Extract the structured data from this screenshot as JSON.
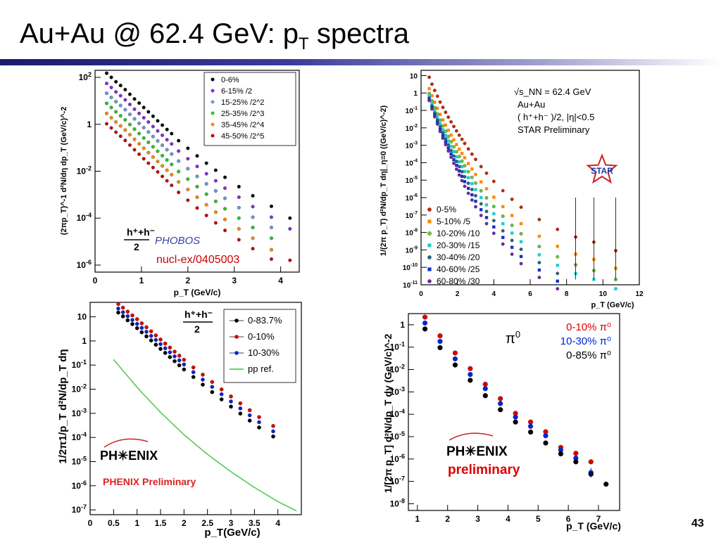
{
  "slide": {
    "title_main": "Au+Au @ 62.4 GeV: p",
    "title_sub": "T",
    "title_tail": " spectra",
    "page_number": "43"
  },
  "chart_data": [
    {
      "id": "phobos",
      "type": "scatter",
      "xlabel": "p_T (GeV/c)",
      "ylabel": "(2πp_T)^-1 d²N/dη dp_T (GeV/c)^-2",
      "xlim": [
        0,
        4.4
      ],
      "ylim_log10": [
        -6.3,
        2.3
      ],
      "log_y": true,
      "x_ticks": [
        "0",
        "1",
        "2",
        "3",
        "4"
      ],
      "y_ticks": [
        "10^2",
        "1",
        "10^-2",
        "10^-4",
        "10^-6"
      ],
      "legend_position": "top-right",
      "series": [
        {
          "name": "0-6%",
          "color": "#000000",
          "x": [
            0.25,
            0.35,
            0.45,
            0.55,
            0.65,
            0.75,
            0.85,
            0.95,
            1.05,
            1.15,
            1.25,
            1.35,
            1.45,
            1.55,
            1.65,
            1.8,
            2.0,
            2.2,
            2.4,
            2.6,
            2.8,
            3.1,
            3.4,
            3.8,
            4.2
          ],
          "y": [
            150,
            100,
            65,
            45,
            30,
            19,
            12,
            8,
            5.2,
            3.4,
            2.2,
            1.4,
            0.92,
            0.6,
            0.4,
            0.2,
            0.095,
            0.045,
            0.022,
            0.011,
            0.0055,
            0.0022,
            0.0009,
            0.00032,
            0.0001
          ]
        },
        {
          "name": "6-15%  /2",
          "color": "#8a2be2",
          "x": [
            0.25,
            0.35,
            0.45,
            0.55,
            0.65,
            0.75,
            0.85,
            0.95,
            1.05,
            1.15,
            1.25,
            1.35,
            1.45,
            1.55,
            1.65,
            1.8,
            2.0,
            2.2,
            2.4,
            2.6,
            2.8,
            3.1,
            3.4,
            3.8,
            4.2
          ],
          "y": [
            55,
            37,
            24,
            16.5,
            11,
            7,
            4.4,
            2.9,
            1.9,
            1.25,
            0.8,
            0.52,
            0.34,
            0.22,
            0.145,
            0.072,
            0.034,
            0.016,
            0.0078,
            0.0039,
            0.0019,
            0.00078,
            0.00031,
            0.00011,
            3.5e-05
          ]
        },
        {
          "name": "15-25% /2^2",
          "color": "#6a9bd8",
          "x": [
            0.25,
            0.35,
            0.45,
            0.55,
            0.65,
            0.75,
            0.85,
            0.95,
            1.05,
            1.15,
            1.25,
            1.35,
            1.45,
            1.55,
            1.65,
            1.8,
            2.0,
            2.2,
            2.4,
            2.6,
            2.8,
            3.1,
            3.4,
            3.8
          ],
          "y": [
            21,
            14,
            9.2,
            6.3,
            4.2,
            2.65,
            1.7,
            1.1,
            0.72,
            0.47,
            0.3,
            0.195,
            0.127,
            0.083,
            0.054,
            0.027,
            0.0128,
            0.006,
            0.0029,
            0.00145,
            0.0007,
            0.00028,
            0.00011,
            4e-05
          ]
        },
        {
          "name": "25-35% /2^3",
          "color": "#22cc22",
          "x": [
            0.25,
            0.35,
            0.45,
            0.55,
            0.65,
            0.75,
            0.85,
            0.95,
            1.05,
            1.15,
            1.25,
            1.35,
            1.45,
            1.55,
            1.65,
            1.8,
            2.0,
            2.2,
            2.4,
            2.6,
            2.8,
            3.1,
            3.4,
            3.8
          ],
          "y": [
            7.8,
            5.2,
            3.4,
            2.3,
            1.55,
            0.98,
            0.62,
            0.4,
            0.26,
            0.17,
            0.11,
            0.071,
            0.046,
            0.03,
            0.0195,
            0.0097,
            0.0046,
            0.0022,
            0.00105,
            0.00052,
            0.00025,
            0.0001,
            4e-05,
            1.4e-05
          ]
        },
        {
          "name": "35-45% /2^4",
          "color": "#ff8c00",
          "x": [
            0.25,
            0.35,
            0.45,
            0.55,
            0.65,
            0.75,
            0.85,
            0.95,
            1.05,
            1.15,
            1.25,
            1.35,
            1.45,
            1.55,
            1.65,
            1.8,
            2.0,
            2.2,
            2.4,
            2.6,
            2.8,
            3.1,
            3.4,
            3.8
          ],
          "y": [
            2.9,
            1.9,
            1.25,
            0.85,
            0.57,
            0.36,
            0.228,
            0.147,
            0.095,
            0.062,
            0.04,
            0.026,
            0.0168,
            0.011,
            0.0071,
            0.0035,
            0.00166,
            0.00078,
            0.00037,
            0.00018,
            8.8e-05,
            3.5e-05,
            1.4e-05,
            4.5e-06
          ]
        },
        {
          "name": "45-50% /2^5",
          "color": "#cc0000",
          "x": [
            0.25,
            0.35,
            0.45,
            0.55,
            0.65,
            0.75,
            0.85,
            0.95,
            1.05,
            1.15,
            1.25,
            1.35,
            1.45,
            1.55,
            1.65,
            1.8,
            2.0,
            2.2,
            2.4,
            2.6,
            2.8,
            3.1,
            3.4,
            3.8,
            4.2
          ],
          "y": [
            1.05,
            0.7,
            0.46,
            0.31,
            0.205,
            0.13,
            0.082,
            0.053,
            0.034,
            0.022,
            0.0143,
            0.0093,
            0.006,
            0.0039,
            0.0025,
            0.00125,
            0.00058,
            0.00027,
            0.00013,
            6.3e-05,
            3e-05,
            1.2e-05,
            5e-06,
            1.8e-06,
            1.6e-06
          ]
        }
      ],
      "annotations": {
        "charge_label": "h⁺+h⁻",
        "charge_den": "2",
        "experiment": "PHOBOS",
        "reference": "nucl-ex/0405003"
      }
    },
    {
      "id": "star",
      "type": "scatter",
      "xlabel": "p_T (GeV/c)",
      "ylabel": "1/(2π p_T)  d²N/dp_T dη|_η=0 ((GeV/c)^-2)",
      "xlim": [
        0,
        12
      ],
      "ylim_log10": [
        -11,
        1.3
      ],
      "log_y": true,
      "x_ticks": [
        "0",
        "2",
        "4",
        "6",
        "8",
        "10",
        "12"
      ],
      "y_ticks": [
        "10",
        "1",
        "10^-1",
        "10^-2",
        "10^-3",
        "10^-4",
        "10^-5",
        "10^-6",
        "10^-7",
        "10^-8",
        "10^-9",
        "10^-10",
        "10^-11"
      ],
      "legend_position": "bottom-left",
      "series": [
        {
          "name": "0-5%",
          "color": "#cc2200"
        },
        {
          "name": "5-10% /5",
          "color": "#ff8800"
        },
        {
          "name": "10-20% /10",
          "color": "#66cc33"
        },
        {
          "name": "20-30% /15",
          "color": "#22cccc"
        },
        {
          "name": "30-40% /20",
          "color": "#226688"
        },
        {
          "name": "40-60% /25",
          "color": "#1133cc"
        },
        {
          "name": "60-80% /30",
          "color": "#7722aa"
        }
      ],
      "x": [
        0.45,
        0.6,
        0.75,
        0.9,
        1.05,
        1.2,
        1.35,
        1.5,
        1.65,
        1.8,
        1.95,
        2.1,
        2.25,
        2.4,
        2.6,
        2.8,
        3.0,
        3.3,
        3.6,
        4.0,
        4.5,
        5.0,
        5.5,
        6.5,
        7.5,
        8.5,
        9.5,
        10.7
      ],
      "y_central": [
        8,
        3.2,
        1.4,
        0.65,
        0.3,
        0.15,
        0.078,
        0.041,
        0.022,
        0.012,
        0.0067,
        0.0038,
        0.0022,
        0.00128,
        0.00062,
        0.00031,
        0.000155,
        6e-05,
        2.5e-05,
        8.5e-06,
        2.5e-06,
        8e-07,
        2.8e-07,
        5.5e-08,
        1.5e-08,
        5.5e-09,
        2.8e-09,
        9e-10
      ],
      "annotations": {
        "energy": "√s_NN = 62.4 GeV",
        "system": "Au+Au",
        "charge": "( h⁺+h⁻ )/2, |η|<0.5",
        "experiment": "STAR Preliminary",
        "logo": "STAR"
      }
    },
    {
      "id": "phenix-charged",
      "type": "scatter",
      "xlabel": "p_T(GeV/c)",
      "ylabel": "1/2π1/p_T d²N/dp_T dη",
      "xlim": [
        0,
        4.5
      ],
      "ylim_log10": [
        -7.2,
        1.6
      ],
      "log_y": true,
      "x_ticks": [
        "0",
        "0.5",
        "1",
        "1.5",
        "2",
        "2.5",
        "3",
        "3.5",
        "4"
      ],
      "y_ticks": [
        "10",
        "1",
        "10^-1",
        "10^-2",
        "10^-3",
        "10^-4",
        "10^-5",
        "10^-6",
        "10^-7"
      ],
      "legend_position": "top-right",
      "series": [
        {
          "name": "0-83.7%",
          "color": "#000000",
          "x": [
            0.6,
            0.7,
            0.8,
            0.9,
            1.0,
            1.1,
            1.2,
            1.3,
            1.4,
            1.5,
            1.6,
            1.7,
            1.8,
            1.9,
            2.0,
            2.2,
            2.4,
            2.6,
            2.8,
            3.0,
            3.2,
            3.4,
            3.6,
            3.9
          ],
          "y": [
            15,
            10.5,
            7.2,
            5,
            3.4,
            2.3,
            1.55,
            1.05,
            0.7,
            0.47,
            0.32,
            0.215,
            0.145,
            0.098,
            0.066,
            0.032,
            0.0155,
            0.0076,
            0.0038,
            0.0019,
            0.00098,
            0.0005,
            0.00026,
            0.00011
          ]
        },
        {
          "name": "0-10%",
          "color": "#dd0000",
          "x": [
            0.6,
            0.7,
            0.8,
            0.9,
            1.0,
            1.1,
            1.2,
            1.3,
            1.4,
            1.5,
            1.6,
            1.7,
            1.8,
            1.9,
            2.0,
            2.2,
            2.4,
            2.6,
            2.8,
            3.0,
            3.2,
            3.4,
            3.6,
            3.9
          ],
          "y": [
            34,
            24,
            16.5,
            11.5,
            8,
            5.4,
            3.7,
            2.5,
            1.7,
            1.15,
            0.78,
            0.53,
            0.36,
            0.245,
            0.166,
            0.08,
            0.04,
            0.02,
            0.0098,
            0.005,
            0.0026,
            0.00135,
            0.0007,
            0.0003
          ]
        },
        {
          "name": "10-30%",
          "color": "#0022dd",
          "x": [
            0.6,
            0.7,
            0.8,
            0.9,
            1.0,
            1.1,
            1.2,
            1.3,
            1.4,
            1.5,
            1.6,
            1.7,
            1.8,
            1.9,
            2.0,
            2.2,
            2.4,
            2.6,
            2.8,
            3.0,
            3.2,
            3.4,
            3.6,
            3.9
          ],
          "y": [
            22,
            15.5,
            10.7,
            7.4,
            5.1,
            3.5,
            2.4,
            1.62,
            1.1,
            0.74,
            0.5,
            0.34,
            0.23,
            0.157,
            0.106,
            0.051,
            0.025,
            0.0125,
            0.0062,
            0.0031,
            0.0016,
            0.00083,
            0.00043,
            0.00018
          ]
        },
        {
          "name": "pp ref.",
          "color": "#55cc55",
          "line": true,
          "x": [
            0.5,
            1.0,
            1.5,
            2.0,
            2.5,
            3.0,
            3.5,
            4.0,
            4.4
          ],
          "y": [
            0.17,
            0.012,
            0.0011,
            0.00013,
            2e-05,
            3.8e-06,
            8.5e-07,
            2.2e-07,
            9e-08
          ]
        }
      ],
      "annotations": {
        "charge_label": "h⁺+h⁻",
        "charge_den": "2",
        "experiment": "PH✳ENIX",
        "experiment_sub": "PHENIX Preliminary"
      }
    },
    {
      "id": "phenix-pi0",
      "type": "scatter",
      "xlabel": "p_T (GeV/c)",
      "ylabel": "1/[2π p_T] d²N/dp_T dy (GeV/c)^-2",
      "xlim": [
        0.7,
        7.7
      ],
      "ylim_log10": [
        -8.3,
        0.5
      ],
      "log_y": true,
      "x_ticks": [
        "1",
        "2",
        "3",
        "4",
        "5",
        "6",
        "7"
      ],
      "y_ticks": [
        "1",
        "10^-1",
        "10^-2",
        "10^-3",
        "10^-4",
        "10^-5",
        "10^-6",
        "10^-7",
        "10^-8"
      ],
      "legend_position": "top-right",
      "series": [
        {
          "name": "0-10% π⁰",
          "color": "#dd0000",
          "x": [
            1.25,
            1.75,
            2.25,
            2.75,
            3.25,
            3.75,
            4.25,
            4.75,
            5.25,
            5.75,
            6.25,
            6.75
          ],
          "y": [
            2.2,
            0.32,
            0.055,
            0.011,
            0.0022,
            0.0005,
            0.00011,
            4.5e-05,
            1.65e-05,
            3.3e-06,
            1.8e-06,
            7.5e-07
          ]
        },
        {
          "name": "10-30% π⁰",
          "color": "#0022dd",
          "x": [
            1.25,
            1.75,
            2.25,
            2.75,
            3.25,
            3.75,
            4.25,
            4.75,
            5.25,
            5.75,
            6.25,
            6.75
          ],
          "y": [
            1.2,
            0.18,
            0.03,
            0.006,
            0.0014,
            0.0003,
            7.5e-05,
            2.9e-05,
            1.1e-05,
            2.5e-06,
            1.1e-06,
            2.5e-07
          ]
        },
        {
          "name": "0-85% π⁰",
          "color": "#000000",
          "x": [
            1.25,
            1.75,
            2.25,
            2.75,
            3.25,
            3.75,
            4.25,
            4.75,
            5.25,
            5.75,
            6.25,
            6.75,
            7.25
          ],
          "y": [
            0.65,
            0.095,
            0.016,
            0.0033,
            0.00068,
            0.00016,
            4.5e-05,
            1.6e-05,
            5.2e-06,
            1.7e-06,
            7.5e-07,
            2.1e-07,
            7.5e-08
          ]
        }
      ],
      "annotations": {
        "particle": "π",
        "particle_sup": "0",
        "experiment": "PH✳ENIX",
        "experiment_sub": "preliminary"
      }
    }
  ]
}
